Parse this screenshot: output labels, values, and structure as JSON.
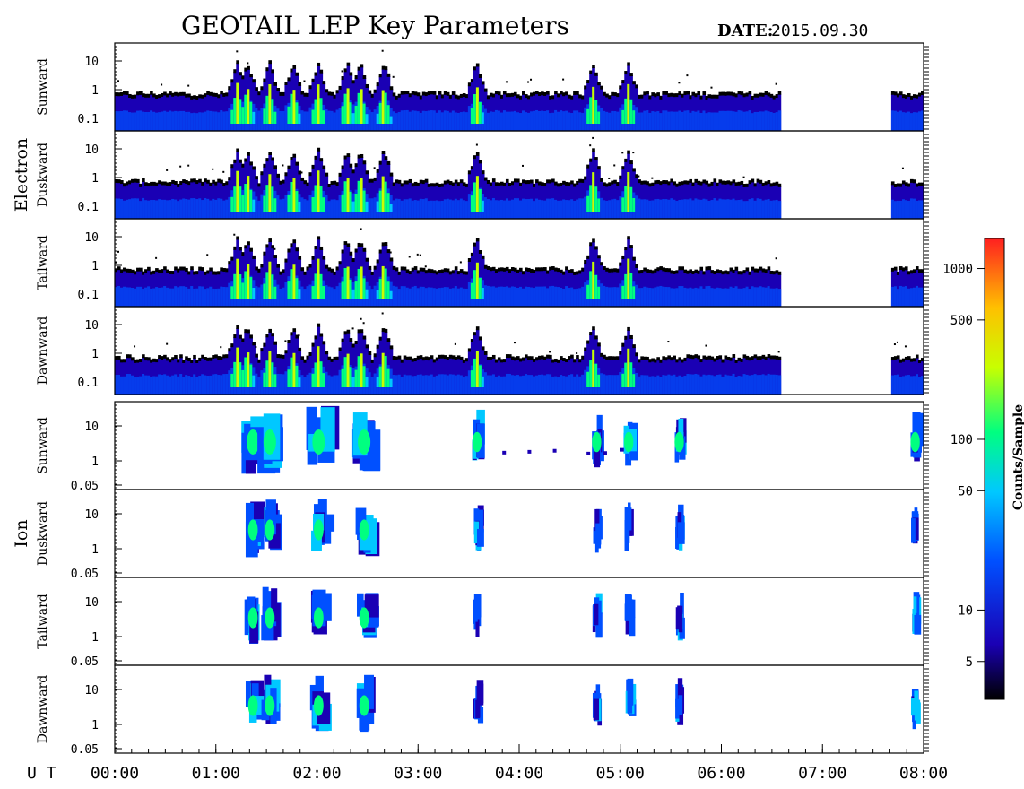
{
  "header": {
    "title": "GEOTAIL LEP Key Parameters",
    "date_label": "DATE:",
    "date_value": "2015.09.30"
  },
  "chart_data": {
    "type": "heatmap",
    "x_axis": {
      "label": "U T",
      "range": [
        "00:00",
        "08:00"
      ],
      "tick_labels": [
        "00:00",
        "01:00",
        "02:00",
        "03:00",
        "04:00",
        "05:00",
        "06:00",
        "07:00",
        "08:00"
      ]
    },
    "groups": [
      {
        "name": "Electron",
        "y_tick_labels": [
          "10",
          "1",
          "0.1"
        ],
        "panels": [
          {
            "direction": "Sunward"
          },
          {
            "direction": "Duskward"
          },
          {
            "direction": "Tailward"
          },
          {
            "direction": "Dawnward"
          }
        ]
      },
      {
        "name": "Ion",
        "y_tick_labels": [
          "10",
          "1",
          "0.05"
        ],
        "panels": [
          {
            "direction": "Sunward"
          },
          {
            "direction": "Duskward"
          },
          {
            "direction": "Tailward"
          },
          {
            "direction": "Dawnward"
          }
        ]
      }
    ],
    "colorbar": {
      "label": "Counts/Sample",
      "scale": "log",
      "range": [
        3,
        1500
      ],
      "tick_labels": [
        "1000",
        "500",
        "100",
        "50",
        "10",
        "5"
      ],
      "tick_values": [
        1000,
        500,
        100,
        50,
        10,
        5
      ],
      "colors": [
        "#000000",
        "#1a00b4",
        "#0050ff",
        "#00c8ff",
        "#00ff80",
        "#c8ff00",
        "#ffc000",
        "#ff2020"
      ]
    },
    "data_gap_utc": [
      "06:35",
      "07:40"
    ],
    "electron_bursts_utc": [
      "01:12",
      "01:18",
      "01:31",
      "01:45",
      "02:00",
      "02:17",
      "02:25",
      "02:39",
      "03:34",
      "04:43",
      "05:04"
    ],
    "ion_bursts_utc": [
      "01:22",
      "01:32",
      "02:01",
      "02:28",
      "03:35",
      "04:46",
      "05:05",
      "05:35",
      "07:55"
    ]
  }
}
